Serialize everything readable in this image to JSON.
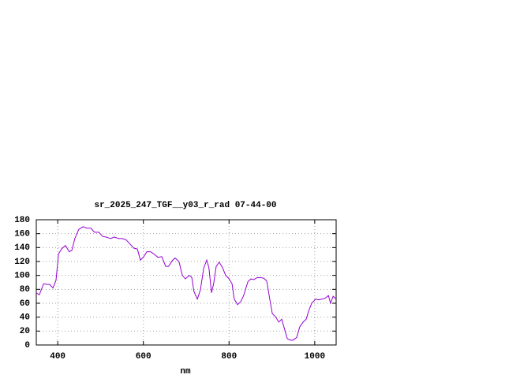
{
  "chart_data": {
    "type": "line",
    "title": "sr_2025_247_TGF__y03_r_rad 07-44-00",
    "x_label": "nm",
    "x": [
      350,
      357,
      367,
      376,
      381,
      389,
      396,
      402,
      409,
      418,
      427,
      433,
      440,
      449,
      459,
      468,
      477,
      486,
      496,
      505,
      514,
      523,
      532,
      542,
      551,
      560,
      569,
      578,
      586,
      593,
      601,
      608,
      617,
      626,
      634,
      643,
      652,
      659,
      667,
      674,
      683,
      691,
      698,
      707,
      713,
      718,
      726,
      733,
      741,
      748,
      753,
      759,
      764,
      770,
      777,
      785,
      792,
      799,
      807,
      812,
      820,
      827,
      834,
      844,
      851,
      858,
      866,
      873,
      881,
      888,
      895,
      901,
      908,
      916,
      923,
      928,
      936,
      943,
      950,
      958,
      965,
      973,
      980,
      986,
      993,
      1002,
      1009,
      1017,
      1024,
      1032,
      1037,
      1043,
      1050
    ],
    "values": [
      75,
      72,
      88,
      87,
      87,
      82,
      93,
      131,
      138,
      143,
      134,
      136,
      153,
      166,
      170,
      168,
      168,
      162,
      162,
      156,
      155,
      153,
      155,
      153,
      153,
      151,
      145,
      139,
      138,
      122,
      127,
      134,
      134,
      130,
      126,
      127,
      113,
      113,
      121,
      125,
      120,
      100,
      95,
      100,
      97,
      77,
      66,
      79,
      111,
      122,
      111,
      75,
      88,
      113,
      119,
      111,
      100,
      96,
      88,
      66,
      58,
      62,
      71,
      91,
      95,
      94,
      97,
      97,
      96,
      92,
      66,
      45,
      41,
      33,
      37,
      26,
      9,
      7,
      7,
      11,
      26,
      33,
      37,
      49,
      60,
      66,
      65,
      66,
      67,
      71,
      60,
      70,
      66
    ],
    "color": "#9400d3",
    "xlim": [
      350,
      1050
    ],
    "xticks": [
      400,
      600,
      800,
      1000
    ],
    "ylim": [
      0,
      180
    ],
    "yticks": [
      0,
      20,
      40,
      60,
      80,
      100,
      120,
      140,
      160,
      180
    ],
    "grid": true
  }
}
